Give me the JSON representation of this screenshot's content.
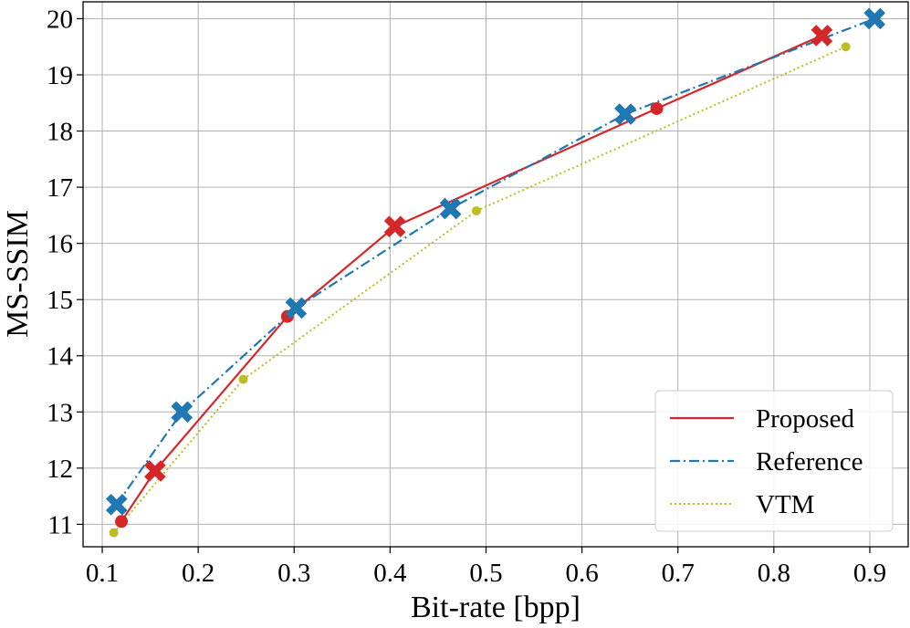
{
  "chart_data": {
    "type": "line",
    "title": "",
    "xlabel": "Bit-rate [bpp]",
    "ylabel": "MS-SSIM",
    "xlim": [
      0.08,
      0.94
    ],
    "ylim": [
      10.6,
      20.3
    ],
    "xticks": [
      0.1,
      0.2,
      0.3,
      0.4,
      0.5,
      0.6,
      0.7,
      0.8,
      0.9
    ],
    "xtick_labels": [
      "0.1",
      "0.2",
      "0.3",
      "0.4",
      "0.5",
      "0.6",
      "0.7",
      "0.8",
      "0.9"
    ],
    "yticks": [
      11,
      12,
      13,
      14,
      15,
      16,
      17,
      18,
      19,
      20
    ],
    "ytick_labels": [
      "11",
      "12",
      "13",
      "14",
      "15",
      "16",
      "17",
      "18",
      "19",
      "20"
    ],
    "grid": true,
    "legend_position": "bottom-right",
    "series": [
      {
        "name": "Proposed",
        "color": "#d62728",
        "line_style": "solid",
        "points": [
          {
            "x": 0.12,
            "y": 11.05,
            "marker": "circle"
          },
          {
            "x": 0.155,
            "y": 11.95,
            "marker": "x"
          },
          {
            "x": 0.293,
            "y": 14.7,
            "marker": "circle"
          },
          {
            "x": 0.405,
            "y": 16.3,
            "marker": "x"
          },
          {
            "x": 0.678,
            "y": 18.4,
            "marker": "circle"
          },
          {
            "x": 0.85,
            "y": 19.7,
            "marker": "x"
          }
        ]
      },
      {
        "name": "Reference",
        "color": "#1f77b4",
        "line_style": "dashdot",
        "points": [
          {
            "x": 0.115,
            "y": 11.35,
            "marker": "x"
          },
          {
            "x": 0.183,
            "y": 13.0,
            "marker": "x"
          },
          {
            "x": 0.302,
            "y": 14.85,
            "marker": "x"
          },
          {
            "x": 0.463,
            "y": 16.62,
            "marker": "x"
          },
          {
            "x": 0.645,
            "y": 18.3,
            "marker": "x"
          },
          {
            "x": 0.905,
            "y": 20.0,
            "marker": "x"
          }
        ]
      },
      {
        "name": "VTM",
        "color": "#bcbd22",
        "line_style": "dotted",
        "points": [
          {
            "x": 0.112,
            "y": 10.85,
            "marker": "dot"
          },
          {
            "x": 0.247,
            "y": 13.58,
            "marker": "dot"
          },
          {
            "x": 0.49,
            "y": 16.58,
            "marker": "dot"
          },
          {
            "x": 0.875,
            "y": 19.5,
            "marker": "dot"
          }
        ]
      }
    ]
  }
}
